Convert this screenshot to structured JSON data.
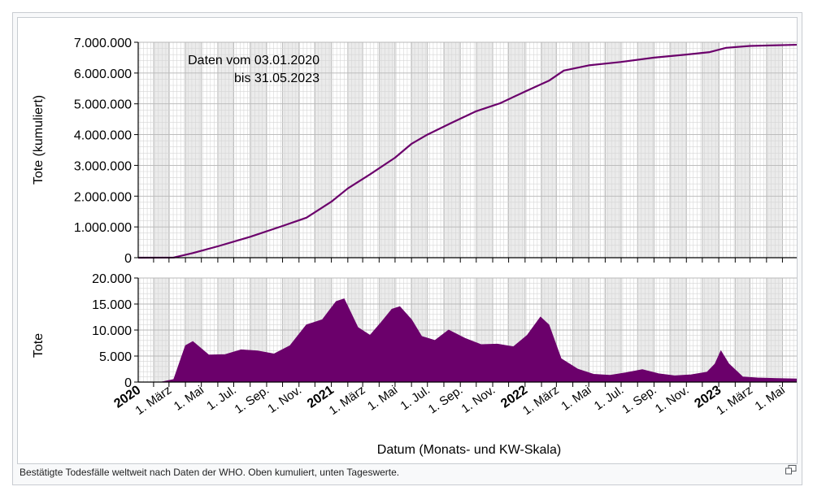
{
  "caption": "Bestätigte Todesfälle weltweit nach Daten der WHO. Oben kumuliert, unten Tageswerte.",
  "enlarge_icon": "magnify-clip-icon",
  "colors": {
    "series": "#6b006b",
    "grid_major": "#b8b8b8",
    "grid_minor": "#d6d6d6",
    "band": "#ebebeb",
    "axis": "#000000"
  },
  "chart_data": [
    {
      "type": "line",
      "annotation": [
        "Daten vom 03.01.2020",
        "bis 31.05.2023"
      ],
      "ylabel": "Tote (kumuliert)",
      "xlim": [
        "2020-01-03",
        "2023-05-31"
      ],
      "ylim": [
        0,
        7000000
      ],
      "yticks": [
        0,
        1000000,
        2000000,
        3000000,
        4000000,
        5000000,
        6000000,
        7000000
      ],
      "ytick_labels": [
        "0",
        "1.000.000",
        "2.000.000",
        "3.000.000",
        "4.000.000",
        "5.000.000",
        "6.000.000",
        "7.000.000"
      ],
      "grid": true,
      "series": [
        {
          "x": [
            "2020-01-03",
            "2020-03-10",
            "2020-04-15",
            "2020-06-01",
            "2020-08-01",
            "2020-10-01",
            "2020-11-15",
            "2021-01-01",
            "2021-02-01",
            "2021-03-15",
            "2021-05-01",
            "2021-06-01",
            "2021-07-01",
            "2021-08-15",
            "2021-10-01",
            "2021-11-15",
            "2022-01-01",
            "2022-02-15",
            "2022-03-15",
            "2022-05-01",
            "2022-07-01",
            "2022-09-01",
            "2022-11-01",
            "2022-12-15",
            "2023-01-15",
            "2023-03-01",
            "2023-05-31"
          ],
          "y": [
            0,
            5000,
            150000,
            370000,
            680000,
            1030000,
            1300000,
            1820000,
            2250000,
            2710000,
            3250000,
            3700000,
            4000000,
            4380000,
            4760000,
            5020000,
            5400000,
            5750000,
            6080000,
            6250000,
            6360000,
            6500000,
            6600000,
            6680000,
            6820000,
            6880000,
            6920000
          ]
        }
      ]
    },
    {
      "type": "bar",
      "ylabel": "Tote",
      "xlabel": "Datum (Monats- und KW-Skala)",
      "xlim": [
        "2020-01-03",
        "2023-05-31"
      ],
      "ylim": [
        0,
        20000
      ],
      "yticks": [
        0,
        5000,
        10000,
        15000,
        20000
      ],
      "ytick_labels": [
        "0",
        "5.000",
        "10.000",
        "15.000",
        "20.000"
      ],
      "grid": true,
      "series": [
        {
          "x": [
            "2020-01-03",
            "2020-02-15",
            "2020-03-10",
            "2020-04-01",
            "2020-04-15",
            "2020-05-15",
            "2020-06-15",
            "2020-07-15",
            "2020-08-15",
            "2020-09-15",
            "2020-10-15",
            "2020-11-15",
            "2020-12-15",
            "2021-01-10",
            "2021-01-25",
            "2021-02-20",
            "2021-03-15",
            "2021-04-05",
            "2021-04-25",
            "2021-05-10",
            "2021-06-01",
            "2021-06-20",
            "2021-07-15",
            "2021-08-10",
            "2021-09-10",
            "2021-10-10",
            "2021-11-10",
            "2021-12-10",
            "2022-01-05",
            "2022-01-30",
            "2022-02-15",
            "2022-03-10",
            "2022-04-10",
            "2022-05-10",
            "2022-06-10",
            "2022-07-10",
            "2022-08-10",
            "2022-09-10",
            "2022-10-10",
            "2022-11-10",
            "2022-12-10",
            "2022-12-25",
            "2023-01-05",
            "2023-01-20",
            "2023-02-15",
            "2023-03-15",
            "2023-04-15",
            "2023-05-31"
          ],
          "y": [
            0,
            0,
            500,
            7000,
            7800,
            5200,
            5300,
            6200,
            6000,
            5400,
            7000,
            11000,
            12000,
            15500,
            16000,
            10500,
            9000,
            11500,
            14000,
            14500,
            12000,
            8800,
            8000,
            10000,
            8400,
            7200,
            7300,
            6800,
            9000,
            12500,
            11000,
            4500,
            2500,
            1500,
            1300,
            1800,
            2400,
            1600,
            1200,
            1400,
            1900,
            3500,
            6000,
            3500,
            1000,
            800,
            700,
            600
          ]
        }
      ]
    }
  ],
  "x_axis": {
    "year_labels": [
      {
        "date": "2020-01-03",
        "label": "2020"
      },
      {
        "date": "2021-01-01",
        "label": "2021"
      },
      {
        "date": "2022-01-01",
        "label": "2022"
      },
      {
        "date": "2023-01-01",
        "label": "2023"
      }
    ],
    "month_labels": [
      {
        "date": "2020-03-01",
        "label": "1. März"
      },
      {
        "date": "2020-05-01",
        "label": "1. Mai"
      },
      {
        "date": "2020-07-01",
        "label": "1. Jul."
      },
      {
        "date": "2020-09-01",
        "label": "1. Sep."
      },
      {
        "date": "2020-11-01",
        "label": "1. Nov."
      },
      {
        "date": "2021-03-01",
        "label": "1. März"
      },
      {
        "date": "2021-05-01",
        "label": "1. Mai"
      },
      {
        "date": "2021-07-01",
        "label": "1. Jul."
      },
      {
        "date": "2021-09-01",
        "label": "1. Sep."
      },
      {
        "date": "2021-11-01",
        "label": "1. Nov."
      },
      {
        "date": "2022-03-01",
        "label": "1. März"
      },
      {
        "date": "2022-05-01",
        "label": "1. Mai"
      },
      {
        "date": "2022-07-01",
        "label": "1. Jul."
      },
      {
        "date": "2022-09-01",
        "label": "1. Sep."
      },
      {
        "date": "2022-11-01",
        "label": "1. Nov."
      },
      {
        "date": "2023-03-01",
        "label": "1. März"
      },
      {
        "date": "2023-05-01",
        "label": "1. Mai"
      }
    ]
  }
}
